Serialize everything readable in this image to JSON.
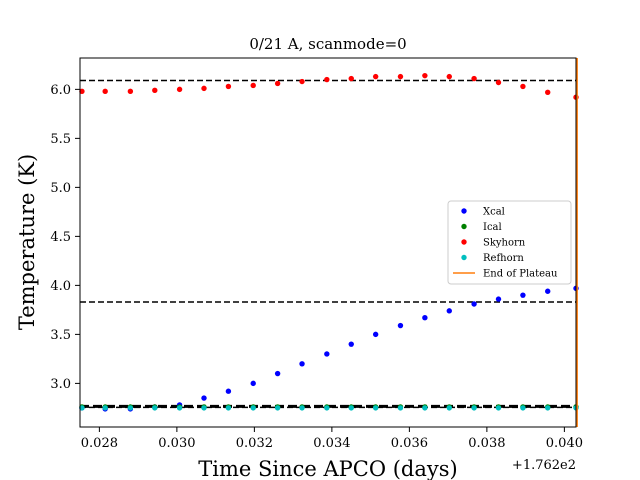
{
  "chart_data": {
    "type": "scatter",
    "title": "0/21 A, scanmode=0",
    "xlabel": "Time Since APCO (days)",
    "ylabel": "Temperature (K)",
    "offset_label": "+1.762e2",
    "xlim": [
      0.0275,
      0.0403
    ],
    "ylim": [
      2.555,
      6.32
    ],
    "xticks": [
      0.028,
      0.03,
      0.032,
      0.034,
      0.036,
      0.038,
      0.04
    ],
    "xtick_labels": [
      "0.028",
      "0.030",
      "0.032",
      "0.034",
      "0.036",
      "0.038",
      "0.040"
    ],
    "yticks": [
      3.0,
      3.5,
      4.0,
      4.5,
      5.0,
      5.5,
      6.0
    ],
    "ytick_labels": [
      "3.0",
      "3.5",
      "4.0",
      "4.5",
      "5.0",
      "5.5",
      "6.0"
    ],
    "grid": false,
    "legend_position": "center-right",
    "x": [
      0.02755,
      0.02815,
      0.0288,
      0.02943,
      0.03007,
      0.0307,
      0.03133,
      0.03197,
      0.0326,
      0.03323,
      0.03387,
      0.0345,
      0.03513,
      0.03577,
      0.0364,
      0.03703,
      0.03767,
      0.0383,
      0.03893,
      0.03957,
      0.0403
    ],
    "series": [
      {
        "name": "Xcal",
        "color": "#0000ff",
        "marker": "dot",
        "values": [
          2.75,
          2.74,
          2.74,
          2.76,
          2.78,
          2.85,
          2.92,
          3.0,
          3.1,
          3.2,
          3.3,
          3.4,
          3.5,
          3.59,
          3.67,
          3.74,
          3.81,
          3.86,
          3.9,
          3.94,
          3.97
        ]
      },
      {
        "name": "Ical",
        "color": "#008000",
        "marker": "dot",
        "values": [
          2.76,
          2.76,
          2.76,
          2.76,
          2.76,
          2.76,
          2.76,
          2.76,
          2.76,
          2.76,
          2.76,
          2.76,
          2.76,
          2.76,
          2.76,
          2.76,
          2.76,
          2.76,
          2.76,
          2.76,
          2.76
        ]
      },
      {
        "name": "Skyhorn",
        "color": "#ff0000",
        "marker": "dot",
        "values": [
          5.98,
          5.98,
          5.98,
          5.99,
          6.0,
          6.01,
          6.03,
          6.04,
          6.06,
          6.08,
          6.1,
          6.11,
          6.13,
          6.13,
          6.14,
          6.13,
          6.11,
          6.07,
          6.03,
          5.97,
          5.92
        ]
      },
      {
        "name": "Refhorn",
        "color": "#00bfbf",
        "marker": "dot",
        "values": [
          2.75,
          2.75,
          2.75,
          2.75,
          2.75,
          2.75,
          2.75,
          2.75,
          2.75,
          2.75,
          2.75,
          2.75,
          2.75,
          2.75,
          2.75,
          2.75,
          2.75,
          2.75,
          2.75,
          2.75,
          2.75
        ]
      },
      {
        "name": "End of Plateau",
        "color": "#ff7f0e",
        "marker": "line",
        "vline_x": 0.04033
      }
    ],
    "hlines": [
      {
        "y": 6.09,
        "color": "#000000",
        "style": "dashed",
        "width": 1.5
      },
      {
        "y": 3.83,
        "color": "#000000",
        "style": "dashed",
        "width": 1.5
      },
      {
        "y": 2.765,
        "color": "#000000",
        "style": "dashed",
        "width": 3
      },
      {
        "y": 2.755,
        "color": "#000000",
        "style": "dashed",
        "width": 1.5
      }
    ]
  }
}
